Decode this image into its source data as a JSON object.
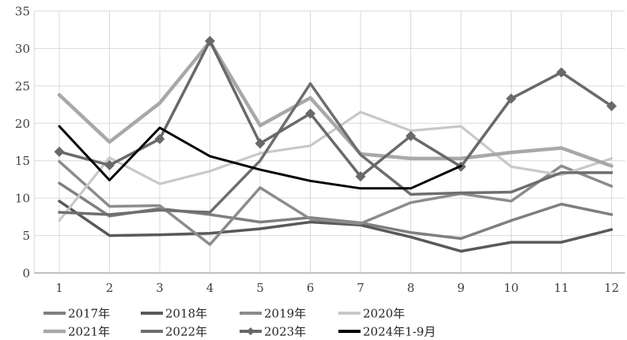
{
  "chart_data": {
    "type": "line",
    "title": "",
    "xlabel": "",
    "ylabel": "",
    "categories": [
      "1",
      "2",
      "3",
      "4",
      "5",
      "6",
      "7",
      "8",
      "9",
      "10",
      "11",
      "12"
    ],
    "yticks": [
      "0",
      "5",
      "10",
      "15",
      "20",
      "25",
      "30",
      "35"
    ],
    "ylim": [
      0,
      35
    ],
    "grid": true,
    "legend_position": "bottom",
    "series": [
      {
        "name": "2017年",
        "color": "#7f7f7f",
        "width": 3.5,
        "marker": "none",
        "values": [
          12.0,
          7.6,
          8.6,
          7.8,
          6.8,
          7.4,
          6.7,
          5.4,
          4.6,
          7.0,
          9.2,
          7.8
        ]
      },
      {
        "name": "2018年",
        "color": "#595959",
        "width": 3.5,
        "marker": "none",
        "values": [
          9.6,
          5.0,
          5.1,
          5.3,
          5.9,
          6.8,
          6.4,
          4.8,
          2.9,
          4.1,
          4.1,
          5.8
        ]
      },
      {
        "name": "2019年",
        "color": "#8c8c8c",
        "width": 3.5,
        "marker": "none",
        "values": [
          14.9,
          8.9,
          9.0,
          3.8,
          11.4,
          7.2,
          6.6,
          9.4,
          10.6,
          9.6,
          14.3,
          11.6
        ]
      },
      {
        "name": "2020年",
        "color": "#c8c8c8",
        "width": 3.2,
        "marker": "none",
        "values": [
          7.0,
          15.4,
          11.9,
          13.6,
          16.0,
          17.0,
          21.5,
          19.0,
          19.6,
          14.2,
          13.1,
          15.3
        ]
      },
      {
        "name": "2021年",
        "color": "#a8a8a8",
        "width": 4.5,
        "marker": "none",
        "values": [
          23.8,
          17.5,
          22.7,
          30.9,
          19.7,
          23.4,
          15.9,
          15.3,
          15.3,
          16.1,
          16.7,
          14.3
        ]
      },
      {
        "name": "2022年",
        "color": "#6e6e6e",
        "width": 3.5,
        "marker": "none",
        "values": [
          8.1,
          7.8,
          8.4,
          8.1,
          15.0,
          25.3,
          15.8,
          10.5,
          10.7,
          10.8,
          13.4,
          13.4
        ]
      },
      {
        "name": "2023年",
        "color": "#696969",
        "width": 3.5,
        "marker": "diamond",
        "values": [
          16.2,
          14.4,
          17.9,
          31.0,
          17.3,
          21.3,
          12.9,
          18.3,
          14.2,
          23.3,
          26.8,
          22.3
        ]
      },
      {
        "name": "2024年1-9月",
        "color": "#000000",
        "width": 3,
        "marker": "none",
        "values": [
          19.6,
          12.4,
          19.4,
          15.6,
          13.8,
          12.3,
          11.3,
          11.3,
          14.3
        ]
      }
    ]
  },
  "style": {
    "grid_color": "#d9d9d9",
    "axis_color": "#bfbfbf",
    "tick_text_color": "#404040",
    "legend_text_color": "#262626",
    "background": "#ffffff"
  }
}
